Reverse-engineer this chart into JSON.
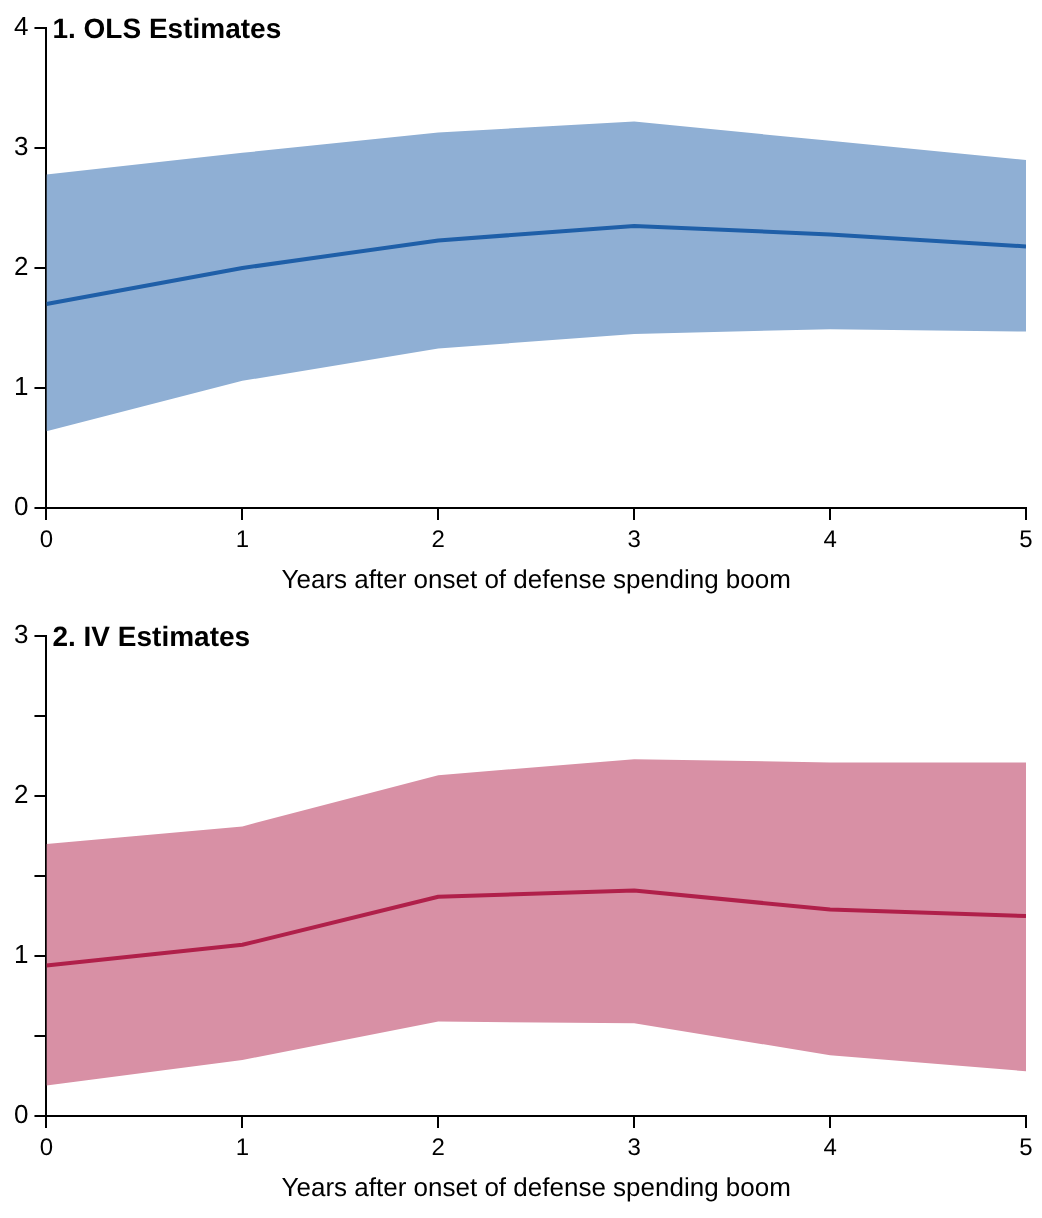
{
  "chart_data": [
    {
      "type": "line",
      "title": "1. OLS Estimates",
      "xlabel": "Years after onset of defense spending boom",
      "x": [
        0,
        1,
        2,
        3,
        4,
        5
      ],
      "xlim": [
        0,
        5
      ],
      "xticks": [
        0,
        1,
        2,
        3,
        4,
        5
      ],
      "ylim": [
        0,
        4
      ],
      "yticks": [
        0,
        1,
        2,
        3,
        4
      ],
      "grid": false,
      "legend": false,
      "marker": "none",
      "series": [
        {
          "color": "#1f5fa8",
          "values": [
            1.7,
            2.0,
            2.23,
            2.35,
            2.28,
            2.18
          ],
          "lower": [
            0.64,
            1.06,
            1.33,
            1.45,
            1.49,
            1.47
          ],
          "upper": [
            2.78,
            2.96,
            3.13,
            3.22,
            3.06,
            2.9
          ]
        }
      ]
    },
    {
      "type": "line",
      "title": "2. IV Estimates",
      "xlabel": "Years after onset of defense spending boom",
      "x": [
        0,
        1,
        2,
        3,
        4,
        5
      ],
      "xlim": [
        0,
        5
      ],
      "xticks": [
        0,
        1,
        2,
        3,
        4,
        5
      ],
      "ylim": [
        0,
        3
      ],
      "yticks": [
        0,
        {
          "value": 0.5,
          "label": null
        },
        1,
        {
          "value": 1.5,
          "label": null
        },
        2,
        {
          "value": 2.5,
          "label": null
        },
        3
      ],
      "grid": false,
      "legend": false,
      "marker": "none",
      "series": [
        {
          "color": "#b0204a",
          "values": [
            0.94,
            1.07,
            1.37,
            1.41,
            1.29,
            1.25
          ],
          "lower": [
            0.19,
            0.35,
            0.59,
            0.58,
            0.38,
            0.28
          ],
          "upper": [
            1.7,
            1.81,
            2.13,
            2.23,
            2.21,
            2.21
          ]
        }
      ]
    }
  ]
}
